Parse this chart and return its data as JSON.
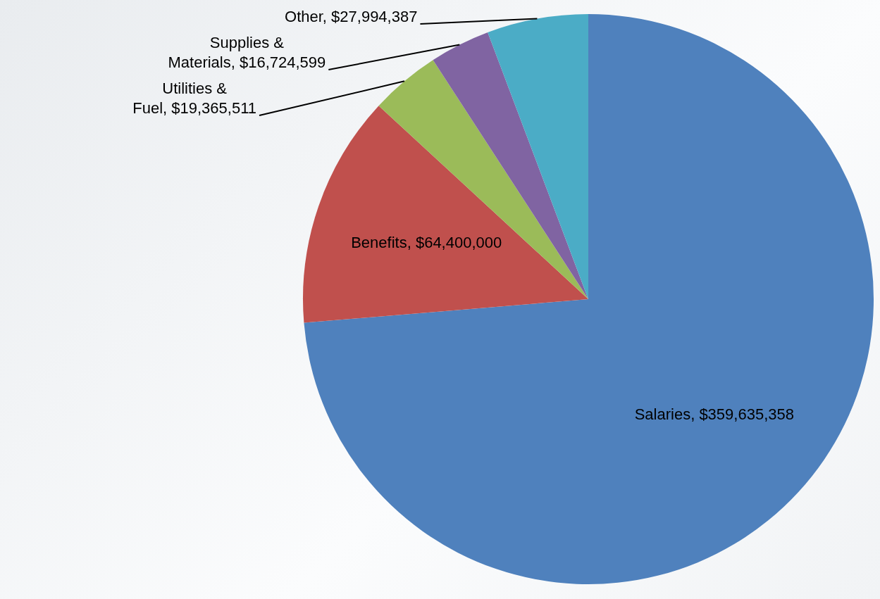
{
  "chart_data": {
    "type": "pie",
    "categories": [
      "Salaries",
      "Benefits",
      "Utilities & Fuel",
      "Supplies & Materials",
      "Other"
    ],
    "values": [
      359635358,
      64400000,
      19365511,
      16724599,
      27994387
    ],
    "colors": [
      "#4f81bd",
      "#c0504d",
      "#9bbb59",
      "#8064a2",
      "#4bacc6"
    ],
    "value_labels": [
      "$359,635,358",
      "$64,400,000",
      "$19,365,511",
      "$16,724,599",
      "$27,994,387"
    ],
    "legend": false
  }
}
